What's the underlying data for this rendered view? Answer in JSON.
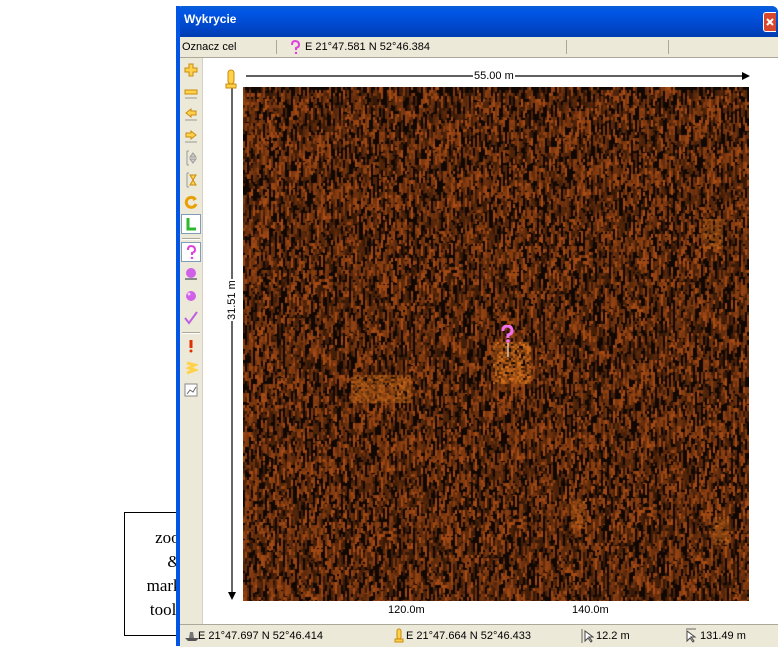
{
  "window": {
    "title": "Wykrycie"
  },
  "infobar": {
    "mode_label": "Oznacz cel",
    "cursor_coords": "E 21°47.581  N 52°46.384"
  },
  "toolbar": {
    "buttons": [
      {
        "name": "zoom-in-icon"
      },
      {
        "name": "zoom-out-icon"
      },
      {
        "name": "pan-left-icon"
      },
      {
        "name": "pan-right-icon"
      },
      {
        "name": "fit-height-icon"
      },
      {
        "name": "fit-vertical-icon"
      },
      {
        "name": "refresh-icon"
      },
      {
        "name": "measure-l-icon"
      },
      {
        "name": "question-marker-icon"
      },
      {
        "name": "sphere-marker-icon"
      },
      {
        "name": "sphere-marker-alt-icon"
      },
      {
        "name": "check-marker-icon"
      },
      {
        "name": "exclamation-marker-icon"
      },
      {
        "name": "note-marker-icon"
      },
      {
        "name": "chart-icon"
      }
    ]
  },
  "plot": {
    "width_label": "55.00 m",
    "height_label": "31.51 m",
    "x_ticks": [
      "120.0m",
      "140.0m"
    ]
  },
  "status": {
    "ship_coords": "E 21°47.697  N 52°46.414",
    "pin_coords": "E 21°47.664  N 52°46.433",
    "distance_1": "12.2 m",
    "distance_2": "131.49 m"
  },
  "annotation": {
    "lines": [
      "zoom",
      "&",
      "markers",
      "toolbar"
    ]
  },
  "colors": {
    "titlebar": "#0055e5",
    "plot_bg": "#110804",
    "echo": "#c8641e",
    "chrome": "#ece9d8"
  }
}
